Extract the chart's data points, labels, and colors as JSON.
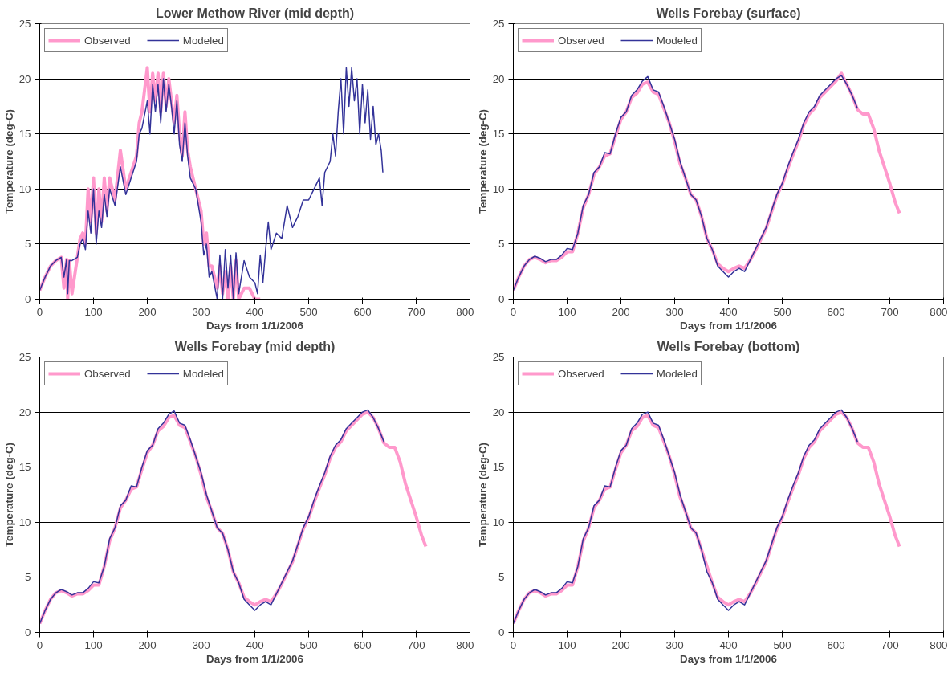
{
  "chart_data": [
    {
      "type": "line",
      "title": "Lower Methow River (mid depth)",
      "xlabel": "Days from 1/1/2006",
      "ylabel": "Temperature (deg-C)",
      "xlim": [
        0,
        800
      ],
      "ylim": [
        0,
        25
      ],
      "xticks": [
        0,
        100,
        200,
        300,
        400,
        500,
        600,
        700,
        800
      ],
      "yticks": [
        0,
        5,
        10,
        15,
        20,
        25
      ],
      "grid": "y",
      "legend": "top left",
      "series": [
        {
          "name": "Observed",
          "color": "#ff99cc",
          "x": [
            0,
            10,
            20,
            30,
            40,
            45,
            50,
            52,
            55,
            60,
            70,
            75,
            80,
            85,
            90,
            95,
            100,
            105,
            110,
            115,
            120,
            125,
            130,
            140,
            150,
            160,
            170,
            180,
            185,
            190,
            200,
            205,
            210,
            215,
            220,
            225,
            230,
            235,
            240,
            245,
            250,
            255,
            260,
            265,
            270,
            275,
            280,
            290,
            300,
            305,
            310,
            315,
            320,
            330,
            335,
            340,
            345,
            350,
            355,
            360,
            365,
            370,
            380,
            390,
            400,
            405,
            410
          ],
          "values": [
            0.8,
            2,
            3,
            3.5,
            3.8,
            1,
            3.6,
            0,
            3.5,
            0.5,
            3.8,
            5.5,
            6,
            5,
            10,
            7,
            11,
            6,
            10,
            7,
            11,
            8,
            11,
            9,
            13.5,
            10,
            11.5,
            13,
            16,
            17,
            21,
            17,
            20.5,
            18,
            20.5,
            17,
            20.5,
            17.5,
            20,
            18,
            16,
            18.5,
            15,
            13,
            17,
            13.5,
            12,
            10,
            8,
            5,
            6,
            3,
            3,
            1,
            3,
            0.5,
            2.5,
            0,
            3,
            0,
            3.5,
            0,
            1,
            1,
            0,
            0,
            0
          ]
        },
        {
          "name": "Modeled",
          "color": "#333399",
          "x": [
            0,
            10,
            20,
            30,
            40,
            45,
            50,
            52,
            55,
            60,
            70,
            75,
            80,
            85,
            90,
            95,
            100,
            105,
            110,
            115,
            120,
            125,
            130,
            140,
            150,
            160,
            170,
            180,
            185,
            190,
            200,
            205,
            210,
            215,
            220,
            225,
            230,
            235,
            240,
            245,
            250,
            255,
            260,
            265,
            270,
            275,
            280,
            290,
            300,
            305,
            310,
            315,
            320,
            330,
            335,
            340,
            345,
            350,
            355,
            360,
            365,
            370,
            380,
            390,
            400,
            405,
            410,
            415,
            420,
            425,
            430,
            440,
            450,
            460,
            470,
            480,
            490,
            500,
            510,
            520,
            525,
            530,
            540,
            545,
            550,
            555,
            560,
            565,
            570,
            575,
            580,
            585,
            590,
            595,
            600,
            605,
            610,
            615,
            620,
            625,
            630,
            635,
            638
          ],
          "values": [
            0.8,
            2,
            3,
            3.5,
            3.8,
            2,
            3.6,
            0.5,
            3.5,
            3.5,
            3.8,
            5,
            5.5,
            4.5,
            8,
            6,
            10,
            5,
            8,
            6.5,
            9.5,
            7.5,
            10,
            8.5,
            12,
            9.5,
            11,
            12.5,
            15,
            15.5,
            18,
            15,
            19.5,
            17,
            19.5,
            16,
            20,
            17,
            19.5,
            17.5,
            15,
            18,
            14,
            12.5,
            16,
            13,
            11,
            10,
            7,
            4,
            5,
            2,
            2.5,
            0,
            4,
            0,
            4.5,
            1,
            4,
            0,
            4.2,
            0.5,
            3.5,
            2,
            1.5,
            0.5,
            4,
            1.5,
            4.5,
            7,
            4.5,
            6,
            5.5,
            8.5,
            6.5,
            7.5,
            9,
            9,
            10,
            11,
            8.5,
            11.5,
            12.5,
            15,
            13,
            17,
            20,
            15,
            21,
            17.5,
            21,
            18,
            20,
            15,
            19.5,
            16,
            19,
            14.5,
            17.5,
            14,
            15,
            13.5,
            11.5
          ]
        }
      ]
    },
    {
      "type": "line",
      "title": "Wells Forebay (surface)",
      "xlabel": "Days from 1/1/2006",
      "ylabel": "Temperature (deg-C)",
      "xlim": [
        0,
        800
      ],
      "ylim": [
        0,
        25
      ],
      "xticks": [
        0,
        100,
        200,
        300,
        400,
        500,
        600,
        700,
        800
      ],
      "yticks": [
        0,
        5,
        10,
        15,
        20,
        25
      ],
      "grid": "y",
      "legend": "top left",
      "series": [
        {
          "name": "Observed",
          "color": "#ff99cc",
          "x": [
            0,
            10,
            20,
            30,
            40,
            50,
            60,
            70,
            80,
            90,
            100,
            110,
            120,
            130,
            140,
            150,
            160,
            170,
            180,
            190,
            200,
            210,
            220,
            230,
            240,
            250,
            260,
            270,
            280,
            290,
            300,
            310,
            320,
            330,
            340,
            350,
            360,
            370,
            380,
            390,
            400,
            410,
            420,
            430,
            440,
            450,
            460,
            470,
            480,
            490,
            500,
            510,
            520,
            530,
            540,
            550,
            560,
            570,
            580,
            590,
            600,
            610,
            620,
            630,
            640,
            650,
            660,
            670,
            680,
            690,
            700,
            710,
            718
          ],
          "values": [
            0.8,
            2,
            3,
            3.6,
            3.8,
            3.6,
            3.3,
            3.5,
            3.5,
            3.8,
            4.3,
            4.3,
            6,
            8.3,
            9.5,
            11.3,
            12,
            13,
            13.2,
            14.8,
            16.3,
            17,
            18.3,
            18.7,
            19.5,
            19.7,
            18.8,
            18.6,
            17.3,
            16,
            14.3,
            12.3,
            11,
            9.5,
            9,
            7.5,
            5.5,
            4.5,
            3.2,
            2.8,
            2.5,
            2.8,
            3,
            2.8,
            3.5,
            4.4,
            5.4,
            6.4,
            7.9,
            9.4,
            10.4,
            11.8,
            13.1,
            14.3,
            15.8,
            16.8,
            17.3,
            18.3,
            18.8,
            19.3,
            19.8,
            20.5,
            19.5,
            18.5,
            17.2,
            16.8,
            16.8,
            15.5,
            13.5,
            12,
            10.5,
            8.8,
            7.8
          ]
        },
        {
          "name": "Modeled",
          "color": "#333399",
          "x": [
            0,
            10,
            20,
            30,
            40,
            50,
            60,
            70,
            80,
            90,
            100,
            110,
            120,
            130,
            140,
            150,
            160,
            170,
            180,
            190,
            200,
            210,
            220,
            230,
            240,
            250,
            260,
            270,
            280,
            290,
            300,
            310,
            320,
            330,
            340,
            350,
            360,
            370,
            380,
            390,
            400,
            410,
            420,
            430,
            440,
            450,
            460,
            470,
            480,
            490,
            500,
            510,
            520,
            530,
            540,
            550,
            560,
            570,
            580,
            590,
            600,
            610,
            620,
            630,
            640
          ],
          "values": [
            0.8,
            2,
            3,
            3.6,
            3.9,
            3.7,
            3.4,
            3.6,
            3.6,
            4,
            4.6,
            4.5,
            6,
            8.5,
            9.5,
            11.5,
            12,
            13.3,
            13.2,
            15,
            16.5,
            17,
            18.5,
            19,
            19.8,
            20.2,
            19,
            18.8,
            17.5,
            16,
            14.5,
            12.5,
            11,
            9.5,
            9,
            7.5,
            5.5,
            4.5,
            3,
            2.5,
            2,
            2.5,
            2.8,
            2.5,
            3.5,
            4.5,
            5.5,
            6.5,
            8,
            9.5,
            10.5,
            12,
            13.3,
            14.5,
            16,
            17,
            17.5,
            18.5,
            19,
            19.5,
            20,
            20.3,
            19.5,
            18.5,
            17.3
          ]
        }
      ]
    },
    {
      "type": "line",
      "title": "Wells Forebay (mid depth)",
      "xlabel": "Days from 1/1/2006",
      "ylabel": "Temperature (deg-C)",
      "xlim": [
        0,
        800
      ],
      "ylim": [
        0,
        25
      ],
      "xticks": [
        0,
        100,
        200,
        300,
        400,
        500,
        600,
        700,
        800
      ],
      "yticks": [
        0,
        5,
        10,
        15,
        20,
        25
      ],
      "grid": "y",
      "legend": "top left",
      "series": [
        {
          "name": "Observed",
          "color": "#ff99cc",
          "x": [
            0,
            10,
            20,
            30,
            40,
            50,
            60,
            70,
            80,
            90,
            100,
            110,
            120,
            130,
            140,
            150,
            160,
            170,
            180,
            190,
            200,
            210,
            220,
            230,
            240,
            250,
            260,
            270,
            280,
            290,
            300,
            310,
            320,
            330,
            340,
            350,
            360,
            370,
            380,
            390,
            400,
            410,
            420,
            430,
            440,
            450,
            460,
            470,
            480,
            490,
            500,
            510,
            520,
            530,
            540,
            550,
            560,
            570,
            580,
            590,
            600,
            610,
            620,
            630,
            640,
            650,
            660,
            670,
            680,
            690,
            700,
            710,
            718
          ],
          "values": [
            0.8,
            2,
            3,
            3.6,
            3.8,
            3.6,
            3.3,
            3.5,
            3.5,
            3.8,
            4.3,
            4.3,
            6,
            8.3,
            9.5,
            11.3,
            12,
            13,
            13.2,
            14.8,
            16.3,
            17,
            18.3,
            18.7,
            19.5,
            19.7,
            18.8,
            18.6,
            17.3,
            16,
            14.3,
            12.3,
            11,
            9.5,
            9,
            7.5,
            5.5,
            4.5,
            3.2,
            2.8,
            2.5,
            2.8,
            3,
            2.8,
            3.5,
            4.4,
            5.4,
            6.4,
            7.9,
            9.4,
            10.4,
            11.8,
            13.1,
            14.3,
            15.8,
            16.8,
            17.3,
            18.3,
            18.8,
            19.3,
            19.8,
            20,
            19.5,
            18.5,
            17.2,
            16.8,
            16.8,
            15.5,
            13.5,
            12,
            10.5,
            8.8,
            7.8
          ]
        },
        {
          "name": "Modeled",
          "color": "#333399",
          "x": [
            0,
            10,
            20,
            30,
            40,
            50,
            60,
            70,
            80,
            90,
            100,
            110,
            120,
            130,
            140,
            150,
            160,
            170,
            180,
            190,
            200,
            210,
            220,
            230,
            240,
            250,
            260,
            270,
            280,
            290,
            300,
            310,
            320,
            330,
            340,
            350,
            360,
            370,
            380,
            390,
            400,
            410,
            420,
            430,
            440,
            450,
            460,
            470,
            480,
            490,
            500,
            510,
            520,
            530,
            540,
            550,
            560,
            570,
            580,
            590,
            600,
            610,
            620,
            630,
            640
          ],
          "values": [
            0.8,
            2,
            3,
            3.6,
            3.9,
            3.7,
            3.4,
            3.6,
            3.6,
            4,
            4.6,
            4.5,
            6,
            8.5,
            9.5,
            11.5,
            12,
            13.3,
            13.2,
            15,
            16.5,
            17,
            18.5,
            19,
            19.8,
            20.1,
            19,
            18.8,
            17.5,
            16,
            14.5,
            12.5,
            11,
            9.5,
            9,
            7.5,
            5.5,
            4.5,
            3,
            2.5,
            2,
            2.5,
            2.8,
            2.5,
            3.5,
            4.5,
            5.5,
            6.5,
            8,
            9.5,
            10.5,
            12,
            13.3,
            14.5,
            16,
            17,
            17.5,
            18.5,
            19,
            19.5,
            20,
            20.2,
            19.5,
            18.5,
            17.3
          ]
        }
      ]
    },
    {
      "type": "line",
      "title": "Wells Forebay (bottom)",
      "xlabel": "Days from 1/1/2006",
      "ylabel": "Temperature (deg-C)",
      "xlim": [
        0,
        800
      ],
      "ylim": [
        0,
        25
      ],
      "xticks": [
        0,
        100,
        200,
        300,
        400,
        500,
        600,
        700,
        800
      ],
      "yticks": [
        0,
        5,
        10,
        15,
        20,
        25
      ],
      "grid": "y",
      "legend": "top left",
      "series": [
        {
          "name": "Observed",
          "color": "#ff99cc",
          "x": [
            0,
            10,
            20,
            30,
            40,
            50,
            60,
            70,
            80,
            90,
            100,
            110,
            120,
            130,
            140,
            150,
            160,
            170,
            180,
            190,
            200,
            210,
            220,
            230,
            240,
            250,
            260,
            270,
            280,
            290,
            300,
            310,
            320,
            330,
            340,
            350,
            360,
            370,
            380,
            390,
            400,
            410,
            420,
            430,
            440,
            450,
            460,
            470,
            480,
            490,
            500,
            510,
            520,
            530,
            540,
            550,
            560,
            570,
            580,
            590,
            600,
            610,
            620,
            630,
            640,
            650,
            660,
            670,
            680,
            690,
            700,
            710,
            718
          ],
          "values": [
            0.8,
            2,
            3,
            3.6,
            3.8,
            3.6,
            3.3,
            3.5,
            3.5,
            3.8,
            4.3,
            4.3,
            6,
            8.3,
            9.5,
            11.3,
            12,
            13,
            13.2,
            14.8,
            16.3,
            17,
            18.3,
            18.7,
            19.5,
            19.7,
            18.8,
            18.6,
            17.3,
            16,
            14.3,
            12.3,
            11,
            9.5,
            9,
            7.5,
            6,
            4.5,
            3.2,
            2.8,
            2.5,
            2.8,
            3,
            2.8,
            3.5,
            4.4,
            5.4,
            6.4,
            7.9,
            9.4,
            10.4,
            11.8,
            13.1,
            14.3,
            15.8,
            16.8,
            17.3,
            18.3,
            18.8,
            19.3,
            19.8,
            20,
            19.5,
            18.5,
            17.2,
            16.8,
            16.8,
            15.5,
            13.5,
            12,
            10.5,
            8.8,
            7.8
          ]
        },
        {
          "name": "Modeled",
          "color": "#333399",
          "x": [
            0,
            10,
            20,
            30,
            40,
            50,
            60,
            70,
            80,
            90,
            100,
            110,
            120,
            130,
            140,
            150,
            160,
            170,
            180,
            190,
            200,
            210,
            220,
            230,
            240,
            250,
            260,
            270,
            280,
            290,
            300,
            310,
            320,
            330,
            340,
            350,
            360,
            370,
            380,
            390,
            400,
            410,
            420,
            430,
            440,
            450,
            460,
            470,
            480,
            490,
            500,
            510,
            520,
            530,
            540,
            550,
            560,
            570,
            580,
            590,
            600,
            610,
            620,
            630,
            640
          ],
          "values": [
            0.8,
            2,
            3,
            3.6,
            3.9,
            3.7,
            3.4,
            3.6,
            3.6,
            4,
            4.6,
            4.5,
            6,
            8.5,
            9.5,
            11.5,
            12,
            13.3,
            13.2,
            15,
            16.5,
            17,
            18.5,
            19,
            19.8,
            20,
            19,
            18.8,
            17.5,
            16,
            14.5,
            12.5,
            11,
            9.5,
            9,
            7.5,
            5.5,
            4.5,
            3,
            2.5,
            2,
            2.5,
            2.8,
            2.5,
            3.5,
            4.5,
            5.5,
            6.5,
            8,
            9.5,
            10.5,
            12,
            13.3,
            14.5,
            16,
            17,
            17.5,
            18.5,
            19,
            19.5,
            20,
            20.2,
            19.5,
            18.5,
            17.3
          ]
        }
      ]
    }
  ]
}
